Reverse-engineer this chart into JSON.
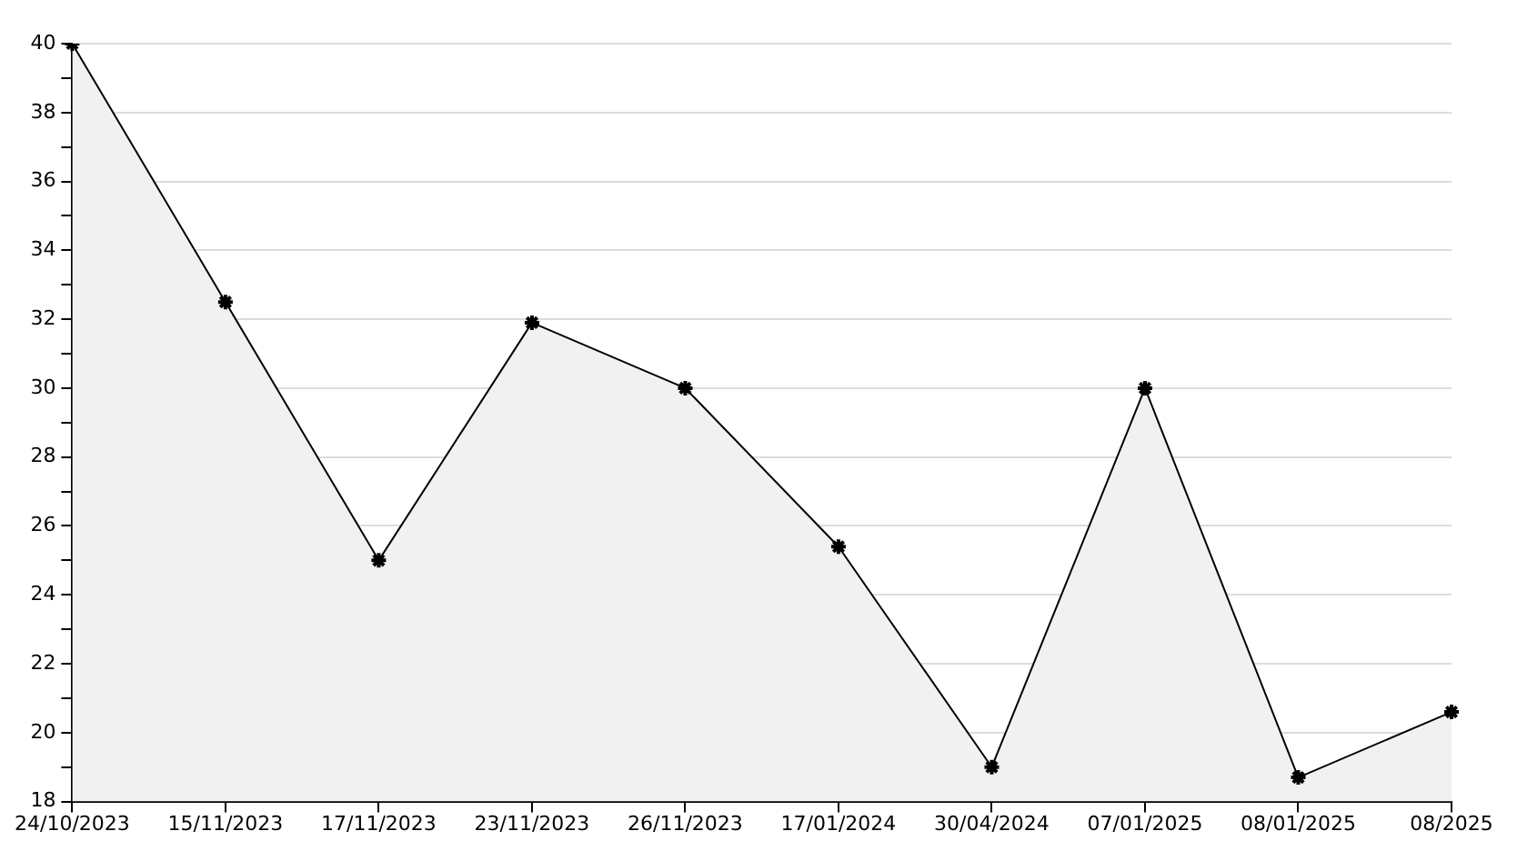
{
  "chart_data": {
    "type": "area",
    "categories": [
      "24/10/2023",
      "15/11/2023",
      "17/11/2023",
      "23/11/2023",
      "26/11/2023",
      "17/01/2024",
      "30/04/2024",
      "07/01/2025",
      "08/01/2025",
      "08/2025"
    ],
    "series": [
      {
        "color": "#000000",
        "values": [
          40,
          32.5,
          25,
          31.9,
          30,
          25.4,
          19,
          30,
          18.7,
          20.6
        ]
      }
    ],
    "ylim": [
      18,
      40
    ],
    "yticks": [
      18,
      {
        "value": 19,
        "label": null
      },
      20,
      {
        "value": 21,
        "label": null
      },
      22,
      {
        "value": 23,
        "label": null
      },
      24,
      {
        "value": 25,
        "label": null
      },
      26,
      {
        "value": 27,
        "label": null
      },
      28,
      {
        "value": 29,
        "label": null
      },
      30,
      {
        "value": 31,
        "label": null
      },
      32,
      {
        "value": 33,
        "label": null
      },
      34,
      {
        "value": 35,
        "label": null
      },
      36,
      {
        "value": 37,
        "label": null
      },
      38,
      {
        "value": 39,
        "label": null
      },
      40
    ],
    "grid": "y",
    "legend": false,
    "marker": "cross",
    "line_style": "solid"
  }
}
